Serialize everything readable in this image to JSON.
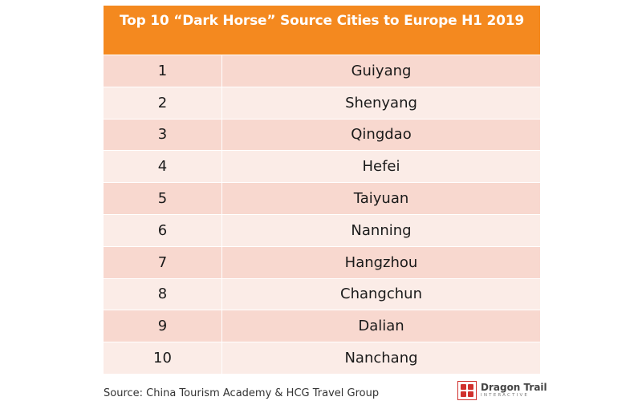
{
  "table": {
    "title": "Top 10 “Dark Horse” Source Cities to Europe H1 2019",
    "header_color": "#f4891f",
    "row_colors": [
      "#f8d8cf",
      "#fbece7"
    ],
    "rows": [
      {
        "rank": "1",
        "city": "Guiyang"
      },
      {
        "rank": "2",
        "city": "Shenyang"
      },
      {
        "rank": "3",
        "city": "Qingdao"
      },
      {
        "rank": "4",
        "city": "Hefei"
      },
      {
        "rank": "5",
        "city": "Taiyuan"
      },
      {
        "rank": "6",
        "city": "Nanning"
      },
      {
        "rank": "7",
        "city": "Hangzhou"
      },
      {
        "rank": "8",
        "city": "Changchun"
      },
      {
        "rank": "9",
        "city": "Dalian"
      },
      {
        "rank": "10",
        "city": "Nanchang"
      }
    ]
  },
  "footer": {
    "source": "Source: China Tourism Academy & HCG Travel Group"
  },
  "logo": {
    "name": "Dragon Trail",
    "sub": "INTERACTIVE",
    "color": "#d0312d"
  }
}
